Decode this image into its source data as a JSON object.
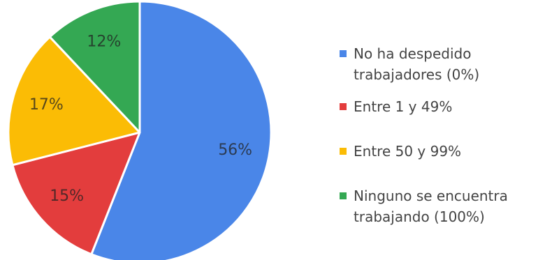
{
  "chart_data": {
    "type": "pie",
    "title": "",
    "slices": [
      {
        "label_lines": [
          "No ha despedido",
          "trabajadores (0%)"
        ],
        "value": 56,
        "display": "56%",
        "color": "#4a86e8"
      },
      {
        "label_lines": [
          "Entre 1 y 49%"
        ],
        "value": 15,
        "display": "15%",
        "color": "#e33d3d"
      },
      {
        "label_lines": [
          "Entre 50 y 99%"
        ],
        "value": 17,
        "display": "17%",
        "color": "#fbbc05"
      },
      {
        "label_lines": [
          "Ninguno se encuentra",
          "trabajando (100%)"
        ],
        "value": 12,
        "display": "12%",
        "color": "#34a853"
      }
    ],
    "start_angle_deg": 0,
    "direction": "clockwise",
    "legend_position": "right"
  }
}
